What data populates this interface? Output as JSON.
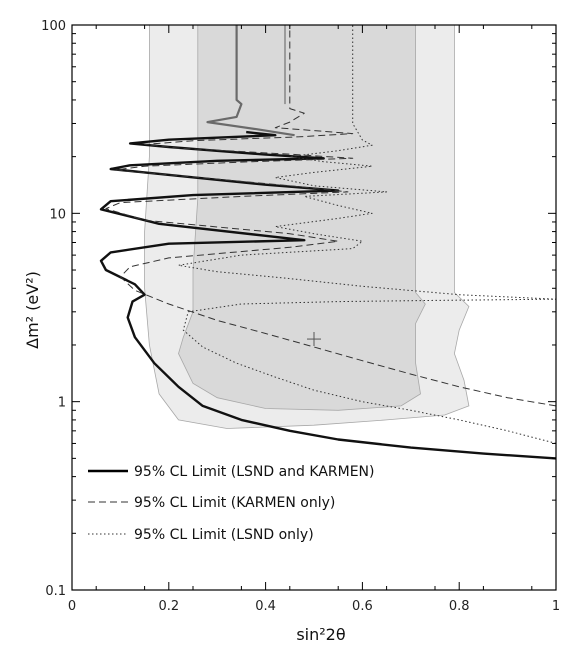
{
  "chart_data": {
    "type": "line",
    "xlabel": "sin²2θ",
    "ylabel": "Δm² (eV²)",
    "xlim": [
      0,
      1
    ],
    "ylim": [
      0.1,
      100
    ],
    "y_scale": "log",
    "x_ticks": [
      "0",
      "0.2",
      "0.4",
      "0.6",
      "0.8",
      "1"
    ],
    "y_ticks": [
      "0.1",
      "1",
      "10",
      "100"
    ],
    "legend_position": "lower-left",
    "legend": [
      {
        "label": "95% CL Limit (LSND and KARMEN)",
        "style": "solid"
      },
      {
        "label": "95% CL Limit (KARMEN only)",
        "style": "dashed"
      },
      {
        "label": "95% CL Limit (LSND only)",
        "style": "dotted"
      }
    ],
    "regions": [
      {
        "fill": "#ececec",
        "points": [
          [
            0.16,
            100
          ],
          [
            0.16,
            20
          ],
          [
            0.15,
            8
          ],
          [
            0.15,
            4
          ],
          [
            0.16,
            2
          ],
          [
            0.18,
            1.1
          ],
          [
            0.22,
            0.8
          ],
          [
            0.32,
            0.72
          ],
          [
            0.5,
            0.75
          ],
          [
            0.65,
            0.8
          ],
          [
            0.77,
            0.85
          ],
          [
            0.82,
            0.95
          ],
          [
            0.81,
            1.3
          ],
          [
            0.79,
            1.8
          ],
          [
            0.8,
            2.4
          ],
          [
            0.82,
            3.2
          ],
          [
            0.79,
            3.8
          ],
          [
            0.79,
            8
          ],
          [
            0.79,
            100
          ]
        ]
      },
      {
        "fill": "#d9d9d9",
        "points": [
          [
            0.26,
            100
          ],
          [
            0.26,
            12
          ],
          [
            0.25,
            5
          ],
          [
            0.25,
            3
          ],
          [
            0.23,
            2.2
          ],
          [
            0.22,
            1.8
          ],
          [
            0.25,
            1.25
          ],
          [
            0.3,
            1.05
          ],
          [
            0.4,
            0.92
          ],
          [
            0.55,
            0.9
          ],
          [
            0.68,
            0.95
          ],
          [
            0.72,
            1.1
          ],
          [
            0.71,
            1.6
          ],
          [
            0.71,
            2.6
          ],
          [
            0.73,
            3.3
          ],
          [
            0.71,
            3.8
          ],
          [
            0.71,
            8
          ],
          [
            0.71,
            100
          ]
        ]
      }
    ],
    "series": [
      {
        "style": "solid-black",
        "points": [
          [
            1.0,
            0.5
          ],
          [
            0.85,
            0.53
          ],
          [
            0.7,
            0.57
          ],
          [
            0.55,
            0.63
          ],
          [
            0.45,
            0.7
          ],
          [
            0.35,
            0.8
          ],
          [
            0.27,
            0.95
          ],
          [
            0.22,
            1.2
          ],
          [
            0.17,
            1.6
          ],
          [
            0.13,
            2.2
          ],
          [
            0.115,
            2.8
          ],
          [
            0.125,
            3.4
          ],
          [
            0.15,
            3.7
          ],
          [
            0.13,
            4.2
          ],
          [
            0.07,
            5.0
          ],
          [
            0.06,
            5.6
          ],
          [
            0.08,
            6.2
          ],
          [
            0.2,
            6.9
          ],
          [
            0.48,
            7.2
          ],
          [
            0.4,
            7.6
          ],
          [
            0.18,
            8.8
          ],
          [
            0.06,
            10.5
          ],
          [
            0.08,
            11.6
          ],
          [
            0.25,
            12.5
          ],
          [
            0.55,
            13.2
          ],
          [
            0.4,
            14.2
          ],
          [
            0.15,
            16.5
          ],
          [
            0.08,
            17.2
          ],
          [
            0.12,
            18.0
          ],
          [
            0.3,
            19.0
          ],
          [
            0.52,
            19.6
          ],
          [
            0.4,
            20.5
          ],
          [
            0.2,
            22.5
          ],
          [
            0.12,
            23.5
          ],
          [
            0.2,
            24.6
          ],
          [
            0.42,
            26.0
          ],
          [
            0.36,
            27.0
          ]
        ]
      },
      {
        "style": "solid-gray",
        "points": [
          [
            0.46,
            26.0
          ],
          [
            0.38,
            28.0
          ],
          [
            0.28,
            30.5
          ],
          [
            0.34,
            32.5
          ],
          [
            0.35,
            38.0
          ],
          [
            0.34,
            40.0
          ],
          [
            0.34,
            100
          ]
        ]
      },
      {
        "style": "solid-gray-thin",
        "points": [
          [
            0.44,
            38.0
          ],
          [
            0.44,
            100
          ]
        ]
      },
      {
        "style": "dashed",
        "points": [
          [
            1.0,
            0.95
          ],
          [
            0.9,
            1.05
          ],
          [
            0.8,
            1.2
          ],
          [
            0.7,
            1.4
          ],
          [
            0.6,
            1.65
          ],
          [
            0.5,
            1.95
          ],
          [
            0.4,
            2.3
          ],
          [
            0.3,
            2.7
          ],
          [
            0.2,
            3.3
          ],
          [
            0.13,
            3.9
          ],
          [
            0.1,
            4.6
          ],
          [
            0.12,
            5.2
          ],
          [
            0.2,
            5.8
          ],
          [
            0.45,
            6.6
          ],
          [
            0.55,
            7.1
          ],
          [
            0.45,
            7.8
          ],
          [
            0.15,
            9.2
          ],
          [
            0.07,
            10.6
          ],
          [
            0.1,
            11.4
          ],
          [
            0.35,
            12.3
          ],
          [
            0.57,
            13.0
          ],
          [
            0.45,
            14.0
          ],
          [
            0.18,
            16.2
          ],
          [
            0.09,
            17.0
          ],
          [
            0.15,
            17.8
          ],
          [
            0.37,
            18.8
          ],
          [
            0.58,
            19.6
          ],
          [
            0.45,
            20.6
          ],
          [
            0.22,
            22.2
          ],
          [
            0.15,
            23.2
          ],
          [
            0.25,
            24.3
          ],
          [
            0.47,
            25.5
          ],
          [
            0.58,
            26.5
          ],
          [
            0.5,
            27.5
          ],
          [
            0.42,
            28.5
          ],
          [
            0.45,
            30.5
          ],
          [
            0.48,
            34.0
          ],
          [
            0.45,
            36.0
          ],
          [
            0.45,
            100
          ]
        ]
      },
      {
        "style": "dotted",
        "points": [
          [
            1.0,
            0.6
          ],
          [
            0.9,
            0.7
          ],
          [
            0.8,
            0.8
          ],
          [
            0.7,
            0.9
          ],
          [
            0.6,
            1.0
          ],
          [
            0.5,
            1.15
          ],
          [
            0.42,
            1.35
          ],
          [
            0.34,
            1.6
          ],
          [
            0.27,
            1.95
          ],
          [
            0.23,
            2.4
          ],
          [
            0.24,
            3.0
          ],
          [
            0.35,
            3.3
          ],
          [
            0.55,
            3.4
          ],
          [
            0.75,
            3.45
          ],
          [
            1.0,
            3.5
          ],
          [
            0.8,
            3.7
          ],
          [
            0.6,
            4.1
          ],
          [
            0.45,
            4.5
          ],
          [
            0.3,
            4.9
          ],
          [
            0.22,
            5.3
          ],
          [
            0.35,
            6.0
          ],
          [
            0.58,
            6.5
          ],
          [
            0.6,
            7.1
          ],
          [
            0.5,
            7.8
          ],
          [
            0.42,
            8.5
          ],
          [
            0.55,
            9.4
          ],
          [
            0.62,
            10.0
          ],
          [
            0.55,
            11.0
          ],
          [
            0.48,
            12.3
          ],
          [
            0.65,
            13.0
          ],
          [
            0.5,
            14.0
          ],
          [
            0.42,
            15.5
          ],
          [
            0.5,
            16.5
          ],
          [
            0.62,
            17.8
          ],
          [
            0.52,
            18.8
          ],
          [
            0.45,
            20.0
          ],
          [
            0.55,
            21.5
          ],
          [
            0.62,
            23.0
          ],
          [
            0.6,
            24.5
          ],
          [
            0.58,
            30.0
          ],
          [
            0.58,
            100
          ]
        ]
      }
    ],
    "annotations": [
      {
        "type": "plus-marker",
        "x": 0.5,
        "y": 2.15
      }
    ]
  }
}
